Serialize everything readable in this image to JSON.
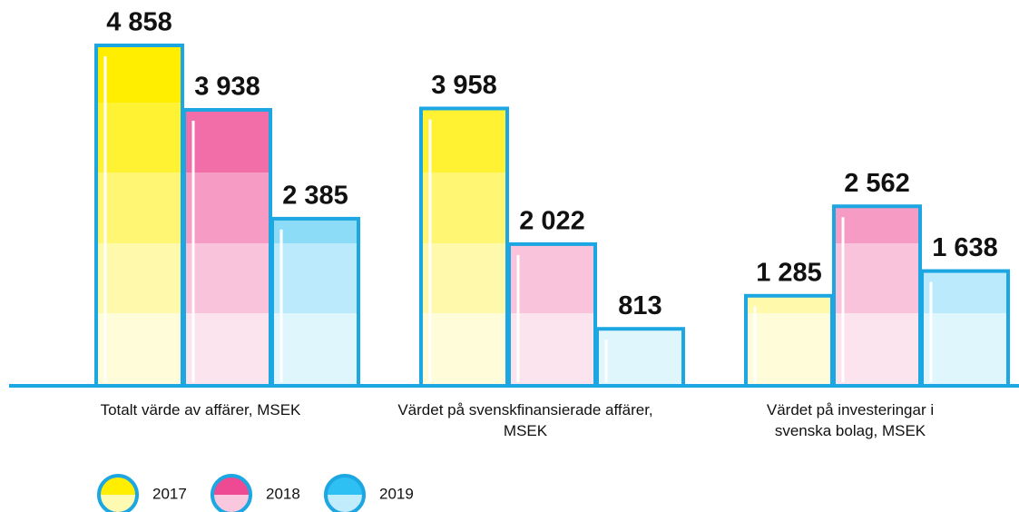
{
  "chart_data": {
    "type": "bar",
    "categories": [
      "Totalt värde av affärer, MSEK",
      "Värdet på svenskfinansierade affärer, MSEK",
      "Värdet på investeringar i svenska bolag, MSEK"
    ],
    "series": [
      {
        "name": "2017",
        "color": "#ffee00",
        "values": [
          4858,
          3958,
          1285
        ],
        "value_labels": [
          "4 858",
          "3 958",
          "1 285"
        ]
      },
      {
        "name": "2018",
        "color": "#ee4a93",
        "values": [
          3938,
          2022,
          2562
        ],
        "value_labels": [
          "3 938",
          "2 022",
          "2 562"
        ]
      },
      {
        "name": "2019",
        "color": "#2ec0f3",
        "values": [
          2385,
          813,
          1638
        ],
        "value_labels": [
          "2 385",
          "813",
          "1 638"
        ]
      }
    ],
    "outline_color": "#1ca6e2"
  }
}
